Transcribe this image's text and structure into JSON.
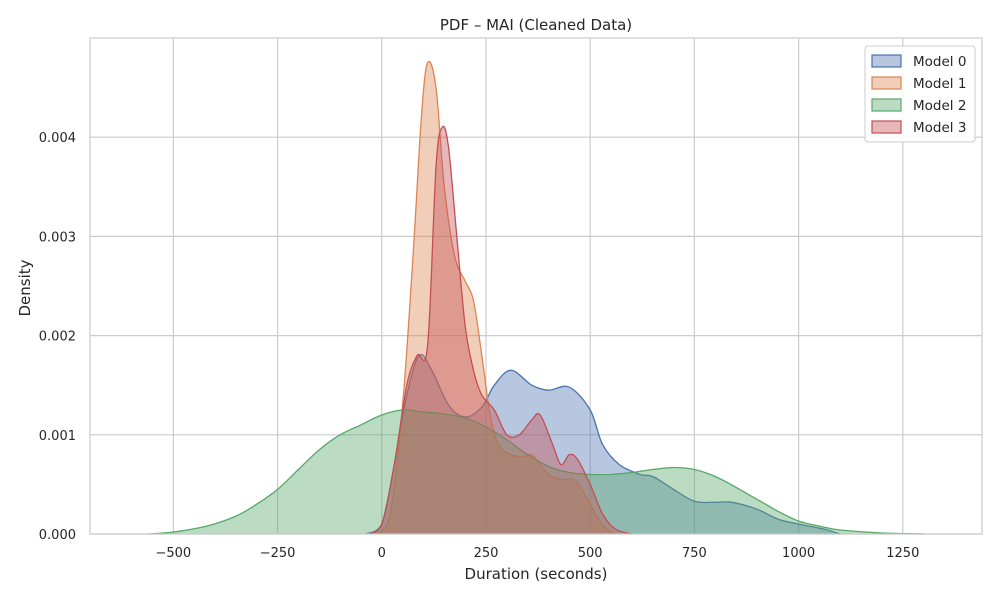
{
  "chart_data": {
    "type": "area",
    "title": "PDF – MAI (Cleaned Data)",
    "xlabel": "Duration (seconds)",
    "ylabel": "Density",
    "xlim": [
      -700,
      1440
    ],
    "ylim": [
      0,
      0.005
    ],
    "xticks": [
      -500,
      -250,
      0,
      250,
      500,
      750,
      1000,
      1250
    ],
    "xtick_labels": [
      "−500",
      "−250",
      "0",
      "250",
      "500",
      "750",
      "1000",
      "1250"
    ],
    "yticks": [
      0,
      0.001,
      0.002,
      0.003,
      0.004
    ],
    "ytick_labels": [
      "0.000",
      "0.001",
      "0.002",
      "0.003",
      "0.004"
    ],
    "grid": true,
    "legend_position": "top-right",
    "series": [
      {
        "name": "Model 0",
        "color": "#4c72b0",
        "points": [
          [
            -40,
            0
          ],
          [
            0,
            0.0001
          ],
          [
            30,
            0.0007
          ],
          [
            60,
            0.0014
          ],
          [
            90,
            0.0018
          ],
          [
            120,
            0.00165
          ],
          [
            160,
            0.0013
          ],
          [
            200,
            0.00118
          ],
          [
            240,
            0.00128
          ],
          [
            270,
            0.0015
          ],
          [
            310,
            0.00165
          ],
          [
            360,
            0.0015
          ],
          [
            400,
            0.00145
          ],
          [
            450,
            0.00148
          ],
          [
            500,
            0.00125
          ],
          [
            530,
            0.0009
          ],
          [
            570,
            0.0007
          ],
          [
            620,
            0.0006
          ],
          [
            650,
            0.00058
          ],
          [
            700,
            0.00045
          ],
          [
            750,
            0.00033
          ],
          [
            800,
            0.00032
          ],
          [
            840,
            0.00032
          ],
          [
            900,
            0.00025
          ],
          [
            950,
            0.00015
          ],
          [
            1000,
            0.0001
          ],
          [
            1060,
            5e-05
          ],
          [
            1100,
            0
          ]
        ]
      },
      {
        "name": "Model 1",
        "color": "#dd8452",
        "points": [
          [
            -10,
            0
          ],
          [
            20,
            0.0002
          ],
          [
            50,
            0.0013
          ],
          [
            75,
            0.0028
          ],
          [
            95,
            0.0042
          ],
          [
            110,
            0.00475
          ],
          [
            130,
            0.0045
          ],
          [
            150,
            0.0035
          ],
          [
            175,
            0.0028
          ],
          [
            200,
            0.00255
          ],
          [
            220,
            0.00235
          ],
          [
            240,
            0.0018
          ],
          [
            260,
            0.0012
          ],
          [
            280,
            0.0009
          ],
          [
            310,
            0.0008
          ],
          [
            340,
            0.00078
          ],
          [
            360,
            0.0008
          ],
          [
            380,
            0.0007
          ],
          [
            400,
            0.0006
          ],
          [
            430,
            0.00055
          ],
          [
            460,
            0.00055
          ],
          [
            480,
            0.00045
          ],
          [
            500,
            0.0003
          ],
          [
            520,
            0.00015
          ],
          [
            540,
            5e-05
          ],
          [
            560,
            0
          ]
        ]
      },
      {
        "name": "Model 2",
        "color": "#55a868",
        "points": [
          [
            -560,
            0
          ],
          [
            -500,
            2e-05
          ],
          [
            -420,
            8e-05
          ],
          [
            -350,
            0.00018
          ],
          [
            -300,
            0.0003
          ],
          [
            -250,
            0.00045
          ],
          [
            -200,
            0.00065
          ],
          [
            -150,
            0.00085
          ],
          [
            -100,
            0.001
          ],
          [
            -50,
            0.0011
          ],
          [
            0,
            0.0012
          ],
          [
            50,
            0.00125
          ],
          [
            100,
            0.00123
          ],
          [
            150,
            0.00121
          ],
          [
            200,
            0.00117
          ],
          [
            250,
            0.00108
          ],
          [
            300,
            0.00095
          ],
          [
            350,
            0.0008
          ],
          [
            400,
            0.00068
          ],
          [
            450,
            0.00062
          ],
          [
            500,
            0.0006
          ],
          [
            550,
            0.0006
          ],
          [
            600,
            0.00062
          ],
          [
            650,
            0.00065
          ],
          [
            700,
            0.00067
          ],
          [
            750,
            0.00065
          ],
          [
            800,
            0.00058
          ],
          [
            850,
            0.00047
          ],
          [
            900,
            0.00035
          ],
          [
            950,
            0.00023
          ],
          [
            1000,
            0.00013
          ],
          [
            1050,
            8e-05
          ],
          [
            1100,
            4e-05
          ],
          [
            1200,
            1e-05
          ],
          [
            1300,
            0
          ]
        ]
      },
      {
        "name": "Model 3",
        "color": "#c44e52",
        "points": [
          [
            -30,
            0
          ],
          [
            0,
            0.0001
          ],
          [
            30,
            0.0007
          ],
          [
            60,
            0.0015
          ],
          [
            85,
            0.0018
          ],
          [
            110,
            0.0019
          ],
          [
            130,
            0.0037
          ],
          [
            145,
            0.0041
          ],
          [
            160,
            0.0039
          ],
          [
            180,
            0.003
          ],
          [
            200,
            0.0021
          ],
          [
            220,
            0.00165
          ],
          [
            240,
            0.0014
          ],
          [
            270,
            0.00125
          ],
          [
            300,
            0.001
          ],
          [
            330,
            0.001
          ],
          [
            360,
            0.00115
          ],
          [
            380,
            0.0012
          ],
          [
            410,
            0.0009
          ],
          [
            430,
            0.0007
          ],
          [
            450,
            0.0008
          ],
          [
            470,
            0.00075
          ],
          [
            500,
            0.0005
          ],
          [
            530,
            0.0002
          ],
          [
            560,
            5e-05
          ],
          [
            600,
            0
          ]
        ]
      }
    ]
  }
}
